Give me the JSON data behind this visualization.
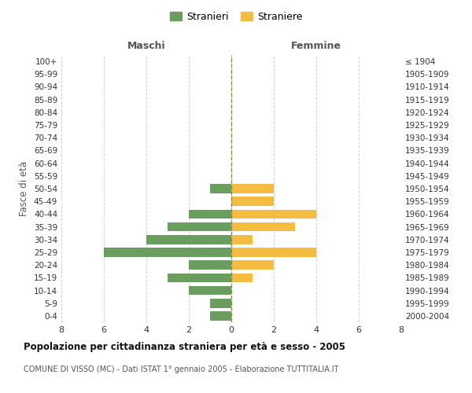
{
  "age_groups": [
    "100+",
    "95-99",
    "90-94",
    "85-89",
    "80-84",
    "75-79",
    "70-74",
    "65-69",
    "60-64",
    "55-59",
    "50-54",
    "45-49",
    "40-44",
    "35-39",
    "30-34",
    "25-29",
    "20-24",
    "15-19",
    "10-14",
    "5-9",
    "0-4"
  ],
  "birth_years": [
    "≤ 1904",
    "1905-1909",
    "1910-1914",
    "1915-1919",
    "1920-1924",
    "1925-1929",
    "1930-1934",
    "1935-1939",
    "1940-1944",
    "1945-1949",
    "1950-1954",
    "1955-1959",
    "1960-1964",
    "1965-1969",
    "1970-1974",
    "1975-1979",
    "1980-1984",
    "1985-1989",
    "1990-1994",
    "1995-1999",
    "2000-2004"
  ],
  "males": [
    0,
    0,
    0,
    0,
    0,
    0,
    0,
    0,
    0,
    0,
    1,
    0,
    2,
    3,
    4,
    6,
    2,
    3,
    2,
    1,
    1
  ],
  "females": [
    0,
    0,
    0,
    0,
    0,
    0,
    0,
    0,
    0,
    0,
    2,
    2,
    4,
    3,
    1,
    4,
    2,
    1,
    0,
    0,
    0
  ],
  "male_color": "#6a9e5e",
  "female_color": "#f5bc42",
  "center_line_color": "#8a8a4a",
  "grid_color": "#d0d0d0",
  "bg_color": "#ffffff",
  "title": "Popolazione per cittadinanza straniera per età e sesso - 2005",
  "subtitle": "COMUNE DI VISSO (MC) - Dati ISTAT 1° gennaio 2005 - Elaborazione TUTTITALIA.IT",
  "xlabel_left": "Maschi",
  "xlabel_right": "Femmine",
  "ylabel_left": "Fasce di età",
  "legend_male": "Stranieri",
  "legend_female": "Straniere",
  "xlim": 8
}
